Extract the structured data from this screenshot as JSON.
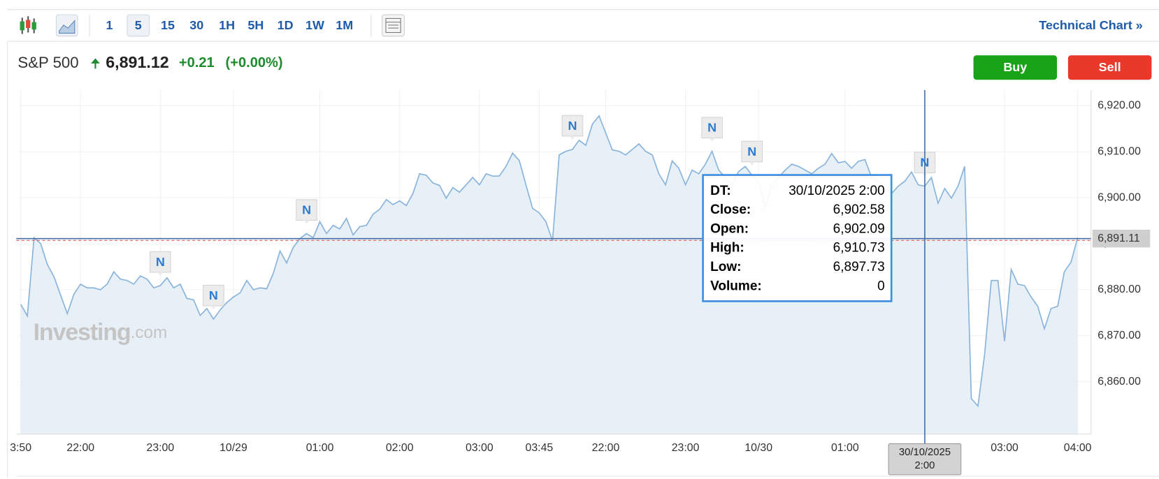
{
  "toolbar": {
    "intervals": [
      "1",
      "5",
      "15",
      "30",
      "1H",
      "5H",
      "1D",
      "1W",
      "1M"
    ],
    "selected": "5",
    "link": "Technical Chart »"
  },
  "header": {
    "name": "S&P 500",
    "price": "6,891.12",
    "change": "+0.21",
    "change_pct": "(+0.00%)",
    "buy": "Buy",
    "sell": "Sell"
  },
  "watermark": {
    "brand": "Investing",
    "suffix": ".com"
  },
  "chart_data": {
    "type": "area",
    "series": [
      {
        "name": "S&P 500",
        "color": "#8ab4db",
        "fill": "#e6eef6",
        "values": [
          6876.8,
          6874.3,
          6891.3,
          6890,
          6885.5,
          6882.8,
          6878.8,
          6874.8,
          6879,
          6881.2,
          6880.4,
          6880.4,
          6880,
          6881.2,
          6883.9,
          6882.3,
          6882,
          6881.2,
          6883,
          6882.3,
          6880.4,
          6880.9,
          6882.6,
          6880.4,
          6881.2,
          6878.1,
          6877.8,
          6874.4,
          6875.9,
          6873.6,
          6875.6,
          6877.2,
          6878.4,
          6879.3,
          6882,
          6880,
          6880.4,
          6880.2,
          6883.6,
          6888.4,
          6885.8,
          6889.2,
          6891.1,
          6892.2,
          6891.3,
          6894.8,
          6892.2,
          6894,
          6893.2,
          6895.5,
          6891.9,
          6893.7,
          6894,
          6896.4,
          6897.5,
          6899.6,
          6898.5,
          6899.3,
          6898.3,
          6900.9,
          6905.2,
          6904.9,
          6903.2,
          6902.7,
          6899.9,
          6902.2,
          6901.2,
          6902.8,
          6904.4,
          6902.8,
          6905.2,
          6904.7,
          6904.7,
          6906.8,
          6909.7,
          6908.1,
          6902.8,
          6897.7,
          6896.7,
          6894.8,
          6890.6,
          6909.3,
          6910.1,
          6910.5,
          6912.5,
          6911.4,
          6916,
          6917.8,
          6914.1,
          6910.4,
          6910.1,
          6909.3,
          6910.5,
          6911.7,
          6910.1,
          6909.3,
          6905.2,
          6902.8,
          6908,
          6906.4,
          6902.8,
          6906,
          6905.2,
          6907.3,
          6910.1,
          6906,
          6904.4,
          6902.8,
          6905.7,
          6906.8,
          6904.9,
          6903.6,
          6898,
          6902.8,
          6904.4,
          6906,
          6907.3,
          6906.8,
          6906,
          6905.2,
          6906.4,
          6907.3,
          6909.6,
          6907.6,
          6907.9,
          6906.4,
          6907.9,
          6908.3,
          6904.4,
          6903.6,
          6902,
          6900.9,
          6902.5,
          6903.6,
          6905.6,
          6902.8,
          6902.5,
          6904.4,
          6898.8,
          6902,
          6899.9,
          6902.5,
          6906.8,
          6856.3,
          6854.7,
          6865.9,
          6882,
          6882,
          6868.8,
          6884.4,
          6881.2,
          6880.9,
          6878.4,
          6876.4,
          6871.5,
          6875.9,
          6876.4,
          6883.9,
          6886,
          6891.3
        ]
      }
    ],
    "xlim": [
      -0.3,
      161
    ],
    "xticks": [
      {
        "value": 0,
        "label": "3:50"
      },
      {
        "value": 9,
        "label": "22:00"
      },
      {
        "value": 21,
        "label": "23:00"
      },
      {
        "value": 32,
        "label": "10/29"
      },
      {
        "value": 45,
        "label": "01:00"
      },
      {
        "value": 57,
        "label": "02:00"
      },
      {
        "value": 69,
        "label": "03:00"
      },
      {
        "value": 78,
        "label": "03:45"
      },
      {
        "value": 88,
        "label": "22:00"
      },
      {
        "value": 100,
        "label": "23:00"
      },
      {
        "value": 111,
        "label": "10/30"
      },
      {
        "value": 124,
        "label": "01:00"
      },
      {
        "value": 148,
        "label": "03:00"
      },
      {
        "value": 159,
        "label": "04:00"
      }
    ],
    "ylim": [
      6848.6,
      6923.4
    ],
    "yticks": [
      {
        "value": 6860,
        "label": "6,860.00"
      },
      {
        "value": 6870,
        "label": "6,870.00"
      },
      {
        "value": 6880,
        "label": "6,880.00"
      },
      {
        "value": 6890,
        "label": "6,890.00"
      },
      {
        "value": 6900,
        "label": "6,900.00"
      },
      {
        "value": 6910,
        "label": "6,910.00"
      },
      {
        "value": 6920,
        "label": "6,920.00"
      }
    ],
    "grid": true,
    "last_price": {
      "value": 6891.11,
      "label": "6,891.11"
    },
    "events": [
      {
        "x": 21,
        "label": "N"
      },
      {
        "x": 29,
        "label": "N"
      },
      {
        "x": 43,
        "label": "N"
      },
      {
        "x": 83,
        "label": "N"
      },
      {
        "x": 104,
        "label": "N"
      },
      {
        "x": 110,
        "label": "N"
      },
      {
        "x": 136,
        "label": "N"
      }
    ],
    "crosshair": {
      "x": 136,
      "label": [
        "30/10/2025",
        "2:00"
      ]
    },
    "tooltip": [
      [
        "DT:",
        "30/10/2025 2:00"
      ],
      [
        "Close:",
        "6,902.58"
      ],
      [
        "Open:",
        "6,902.09"
      ],
      [
        "High:",
        "6,910.73"
      ],
      [
        "Low:",
        "6,897.73"
      ],
      [
        "Volume:",
        "0"
      ]
    ]
  }
}
